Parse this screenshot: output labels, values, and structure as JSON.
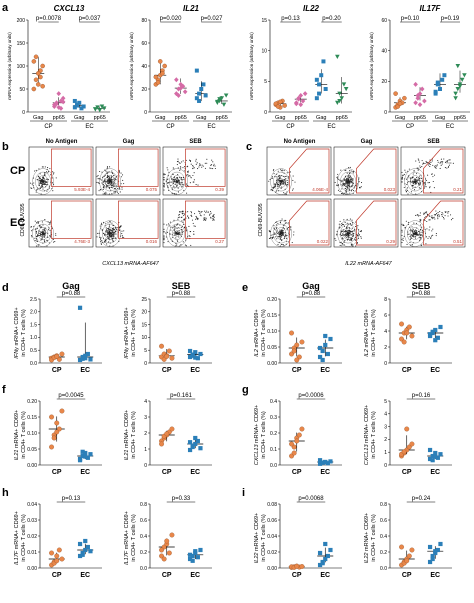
{
  "colors": {
    "cp": "#e8874a",
    "cp_dark": "#c96d3a",
    "ec": "#2b7fb8",
    "pink": "#d56ba6",
    "green": "#2e8b57",
    "gate": "#c0392b"
  },
  "panel_a": {
    "letter": "a",
    "ylabel": "mRNA expression (arbitrary units)",
    "groups": [
      "CP",
      "EC"
    ],
    "xcats": [
      "Gag",
      "pp65",
      "Gag",
      "pp65"
    ],
    "plots": [
      {
        "gene": "CXCL13",
        "p1": "p=0.0078",
        "p2": "p=0.037",
        "yticks": [
          "0",
          "50",
          "100",
          "150",
          "200"
        ],
        "series": [
          [
            0.25,
            0.35,
            0.3,
            0.45,
            0.5,
            0.55,
            0.6,
            0.42,
            0.38,
            0.28
          ],
          [
            0.08,
            0.1,
            0.05,
            0.12,
            0.15,
            0.06,
            0.09,
            0.2,
            0.04,
            0.11
          ],
          [
            0.05,
            0.08,
            0.1,
            0.04,
            0.06,
            0.12,
            0.07
          ],
          [
            0.03,
            0.05,
            0.02,
            0.06,
            0.04,
            0.03
          ]
        ]
      },
      {
        "gene": "IL21",
        "p1": "p=0.020",
        "p2": "p=0.027",
        "yticks": [
          "0",
          "20",
          "40",
          "60",
          "80"
        ],
        "series": [
          [
            0.3,
            0.35,
            0.4,
            0.45,
            0.5,
            0.38,
            0.32,
            0.55,
            0.42
          ],
          [
            0.2,
            0.25,
            0.3,
            0.28,
            0.22,
            0.35,
            0.18,
            0.26
          ],
          [
            0.15,
            0.2,
            0.25,
            0.3,
            0.18,
            0.45,
            0.12
          ],
          [
            0.1,
            0.12,
            0.15,
            0.08,
            0.18,
            0.11,
            0.14
          ]
        ]
      },
      {
        "gene": "IL22",
        "p1": "p=0.13",
        "p2": "p=0.20",
        "yticks": [
          "0",
          "5",
          "10",
          "15"
        ],
        "series": [
          [
            0.08,
            0.1,
            0.05,
            0.12,
            0.07,
            0.09,
            0.06,
            0.11
          ],
          [
            0.1,
            0.15,
            0.08,
            0.12,
            0.2,
            0.09,
            0.14,
            0.18
          ],
          [
            0.15,
            0.3,
            0.4,
            0.55,
            0.25,
            0.35,
            0.2
          ],
          [
            0.1,
            0.2,
            0.15,
            0.3,
            0.25,
            0.6,
            0.12
          ]
        ]
      },
      {
        "gene": "IL17F",
        "p1": "p=0.10",
        "p2": "p=0.19",
        "yticks": [
          "0",
          "20",
          "40",
          "60"
        ],
        "series": [
          [
            0.05,
            0.08,
            0.12,
            0.1,
            0.15,
            0.2,
            0.06,
            0.09
          ],
          [
            0.1,
            0.15,
            0.2,
            0.25,
            0.12,
            0.3,
            0.18,
            0.08
          ],
          [
            0.2,
            0.3,
            0.25,
            0.35,
            0.4,
            0.22,
            0.32
          ],
          [
            0.15,
            0.25,
            0.3,
            0.35,
            0.4,
            0.2,
            0.5,
            0.28
          ]
        ]
      }
    ]
  },
  "panel_b": {
    "letter": "b",
    "cols": [
      "No Antigen",
      "Gag",
      "SEB"
    ],
    "rows": [
      "CP",
      "EC"
    ],
    "values": [
      [
        "5.93E-4",
        "0.075",
        "0.39"
      ],
      [
        "4.76E-3",
        "0.016",
        "0.27"
      ]
    ],
    "ylabel": "CD69-BUV395",
    "xlabel": "CXCL13 mRNA-AF647"
  },
  "panel_c": {
    "letter": "c",
    "cols": [
      "No Antigen",
      "Gag",
      "SEB"
    ],
    "values": [
      [
        "4.06E-4",
        "0.023",
        "0.21"
      ],
      [
        "0.022",
        "0.29",
        "0.51"
      ]
    ],
    "ylabel": "CD69-BUV395",
    "xlabel": "IL22 mRNA-AF647"
  },
  "bottom": [
    {
      "letter": "d",
      "ylabel_gene": "IFNγ",
      "ylabel_rest": " mRNA+ CD69+",
      "ylabel2": "in CD4+ T cells (%)",
      "left": {
        "title": "Gag",
        "p": "p=0.88",
        "yticks": [
          "0.0",
          "0.5",
          "1.0",
          "1.5",
          "2.0",
          "2.5"
        ],
        "cp": [
          0.08,
          0.1,
          0.12,
          0.06,
          0.15,
          0.05,
          0.09,
          0.11
        ],
        "ec": [
          0.05,
          0.1,
          0.08,
          0.15,
          0.06,
          0.92,
          0.07,
          0.12
        ]
      },
      "right": {
        "title": "SEB",
        "p": "p=0.88",
        "yticks": [
          "0",
          "5",
          "10",
          "15",
          "20",
          "25"
        ],
        "cp": [
          0.1,
          0.15,
          0.12,
          0.2,
          0.08,
          0.28,
          0.06,
          0.11
        ],
        "ec": [
          0.1,
          0.12,
          0.18,
          0.08,
          0.15,
          0.2,
          0.14,
          0.09
        ]
      }
    },
    {
      "letter": "e",
      "ylabel_gene": "IL2",
      "ylabel_rest": " mRNA+ CD69+",
      "ylabel2": "in CD4+ T cells (%)",
      "left": {
        "title": "Gag",
        "p": "p=0.88",
        "yticks": [
          "0.00",
          "0.05",
          "0.10",
          "0.15",
          "0.20"
        ],
        "cp": [
          0.15,
          0.25,
          0.3,
          0.1,
          0.35,
          0.5,
          0.2,
          0.05
        ],
        "ec": [
          0.1,
          0.2,
          0.3,
          0.15,
          0.4,
          0.25,
          0.05,
          0.45
        ]
      },
      "right": {
        "title": "SEB",
        "p": "p=0.88",
        "yticks": [
          "0",
          "2",
          "4",
          "6",
          "8"
        ],
        "cp": [
          0.4,
          0.5,
          0.55,
          0.6,
          0.45,
          0.65,
          0.35,
          0.5
        ],
        "ec": [
          0.45,
          0.5,
          0.55,
          0.42,
          0.6,
          0.48,
          0.52,
          0.38
        ]
      }
    },
    {
      "letter": "f",
      "ylabel_gene": "IL21",
      "ylabel_rest": " mRNA+ CD69+",
      "ylabel2": "in CD4+ T cells (%)",
      "left": {
        "title": "",
        "p": "p=0.0045",
        "yticks": [
          "0.00",
          "0.05",
          "0.10",
          "0.15",
          "0.20"
        ],
        "cp": [
          0.3,
          0.5,
          0.7,
          0.6,
          0.9,
          0.8,
          0.45,
          0.55
        ],
        "ec": [
          0.1,
          0.15,
          0.2,
          0.12,
          0.18,
          0.08,
          0.22,
          0.14
        ]
      },
      "right": {
        "title": "",
        "p": "p=0.161",
        "yticks": [
          "0",
          "1",
          "2",
          "3",
          "4"
        ],
        "cp": [
          0.4,
          0.45,
          0.5,
          0.55,
          0.6,
          0.35,
          0.48,
          0.52
        ],
        "ec": [
          0.25,
          0.3,
          0.35,
          0.4,
          0.28,
          0.38,
          0.32,
          0.45
        ]
      }
    },
    {
      "letter": "g",
      "ylabel_gene": "CXCL13",
      "ylabel_rest": " mRNA+ CD69+",
      "ylabel2": "in CD4+ T cells (%)",
      "left": {
        "title": "",
        "p": "p=0.0006",
        "yticks": [
          "0.0",
          "0.1",
          "0.2",
          "0.3",
          "0.4"
        ],
        "cp": [
          0.15,
          0.3,
          0.45,
          0.5,
          0.6,
          0.35,
          0.2,
          0.4
        ],
        "ec": [
          0.02,
          0.04,
          0.05,
          0.03,
          0.06,
          0.08,
          0.04,
          0.05
        ]
      },
      "right": {
        "title": "",
        "p": "p=0.16",
        "yticks": [
          "0",
          "1",
          "2",
          "3",
          "4",
          "5"
        ],
        "cp": [
          0.15,
          0.2,
          0.25,
          0.3,
          0.35,
          0.18,
          0.22,
          0.6
        ],
        "ec": [
          0.1,
          0.15,
          0.2,
          0.12,
          0.18,
          0.25,
          0.08,
          0.14
        ]
      }
    },
    {
      "letter": "h",
      "ylabel_gene": "IL17F",
      "ylabel_rest": " mRNA+ CD69+",
      "ylabel2": "in CD4+ T cells (%)",
      "left": {
        "title": "",
        "p": "p=0.13",
        "yticks": [
          "0.00",
          "0.01",
          "0.02",
          "0.03",
          "0.04"
        ],
        "cp": [
          0.05,
          0.1,
          0.2,
          0.3,
          0.15,
          0.25,
          0.08,
          0.12
        ],
        "ec": [
          0.2,
          0.25,
          0.3,
          0.35,
          0.28,
          0.4,
          0.22,
          0.45
        ]
      },
      "right": {
        "title": "",
        "p": "p=0.33",
        "yticks": [
          "0.0",
          "0.2",
          "0.4",
          "0.6",
          "0.8"
        ],
        "cp": [
          0.2,
          0.35,
          0.4,
          0.25,
          0.55,
          0.3,
          0.15,
          0.45
        ],
        "ec": [
          0.15,
          0.2,
          0.25,
          0.18,
          0.3,
          0.22,
          0.12,
          0.28
        ]
      }
    },
    {
      "letter": "i",
      "ylabel_gene": "IL22",
      "ylabel_rest": " mRNA+ CD69+",
      "ylabel2": "in CD4+ T cells (%)",
      "left": {
        "title": "",
        "p": "p=0.0068",
        "yticks": [
          "0.00",
          "0.02",
          "0.04",
          "0.06",
          "0.08"
        ],
        "cp": [
          0.01,
          0.02,
          0.03,
          0.015,
          0.025,
          0.02,
          0.01,
          0.03
        ],
        "ec": [
          0.05,
          0.1,
          0.15,
          0.2,
          0.3,
          0.25,
          0.08,
          0.4
        ]
      },
      "right": {
        "title": "",
        "p": "p=0.24",
        "yticks": [
          "0.0",
          "0.2",
          "0.4",
          "0.6",
          "0.8"
        ],
        "cp": [
          0.05,
          0.1,
          0.15,
          0.2,
          0.3,
          0.35,
          0.08,
          0.12
        ],
        "ec": [
          0.1,
          0.2,
          0.25,
          0.3,
          0.4,
          0.35,
          0.15,
          0.28
        ]
      }
    }
  ],
  "bottom_xcats": [
    "CP",
    "EC"
  ]
}
